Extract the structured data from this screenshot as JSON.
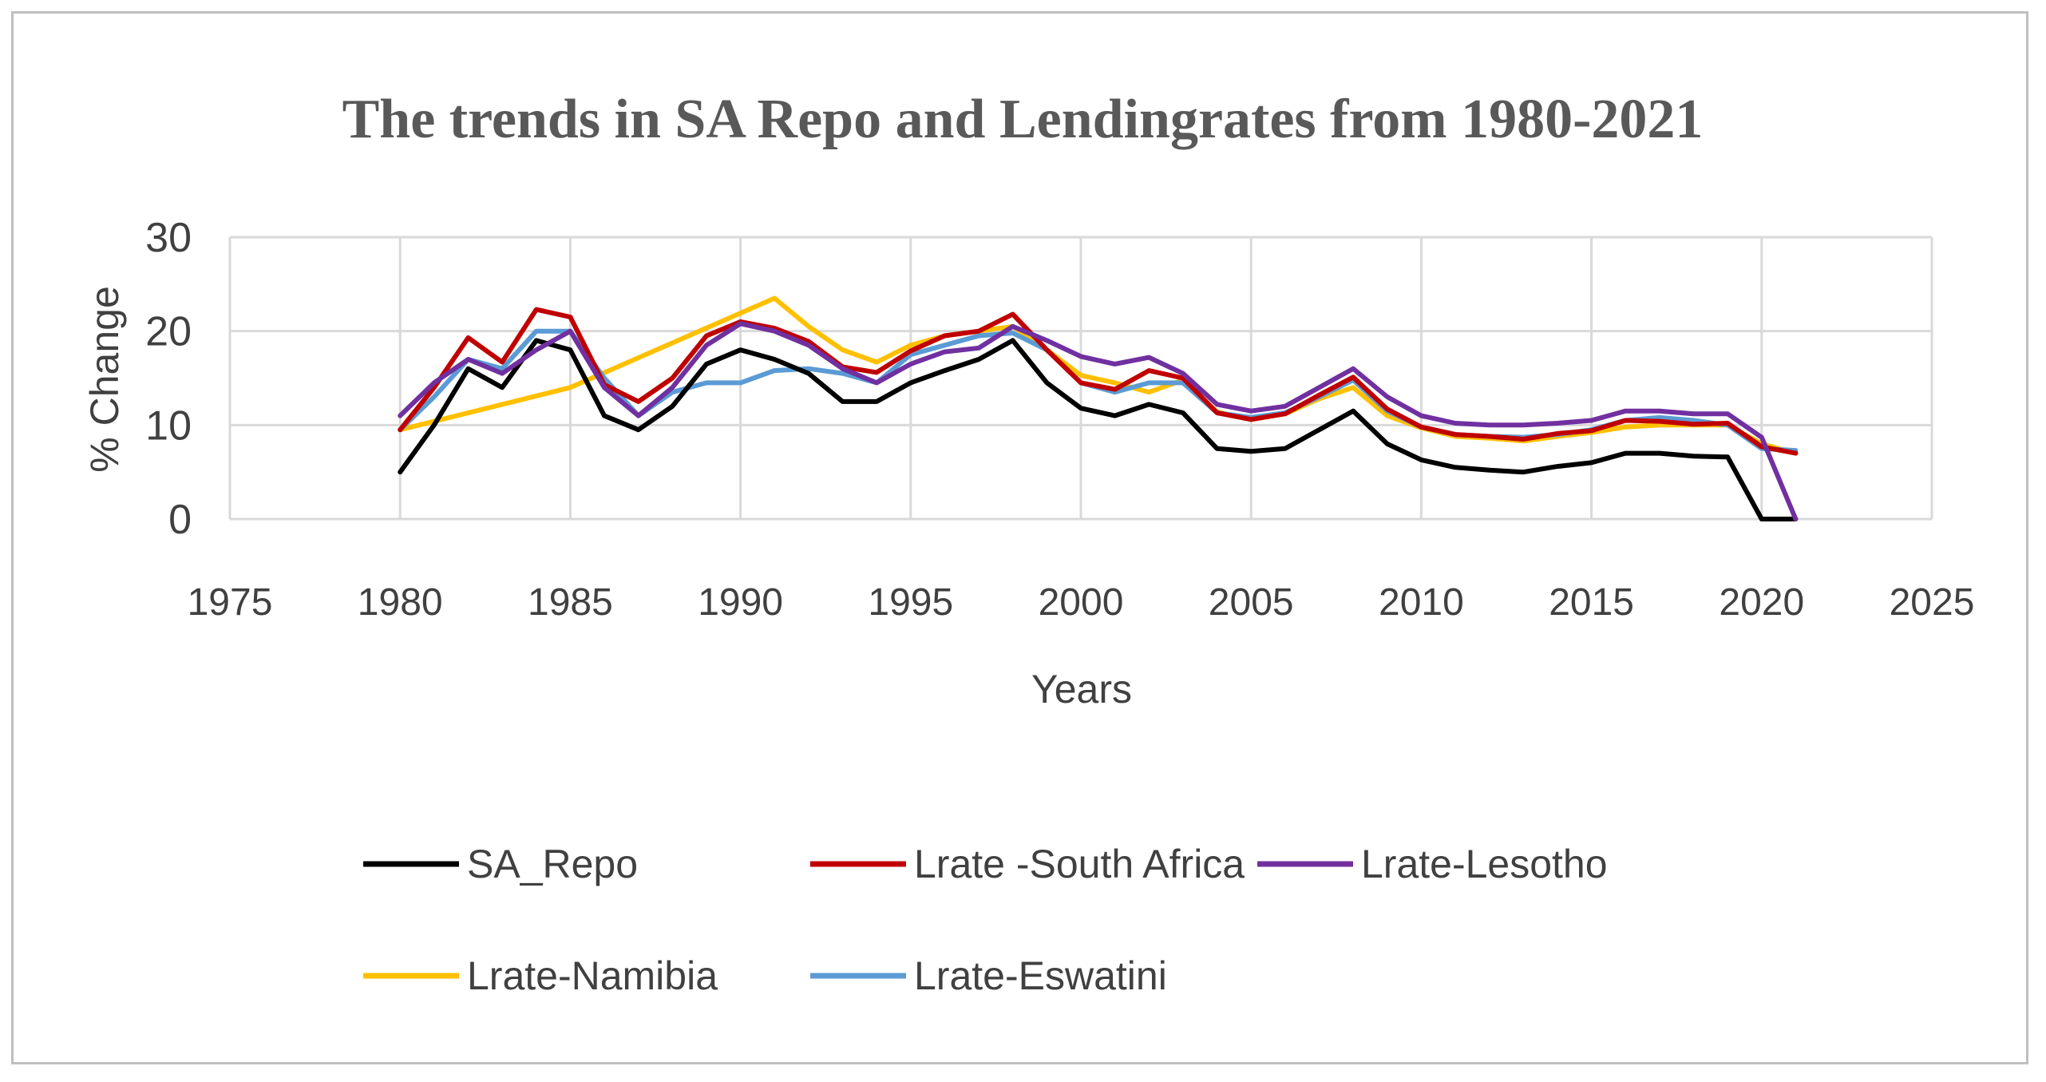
{
  "chart_data": {
    "type": "line",
    "title": "The trends in SA Repo and Lendingrates from 1980-2021",
    "xlabel": "Years",
    "ylabel": "% Change",
    "xlim": [
      1975,
      2025
    ],
    "ylim": [
      0,
      30
    ],
    "xticks": [
      "1975",
      "1980",
      "1985",
      "1990",
      "1995",
      "2000",
      "2005",
      "2010",
      "2015",
      "2020",
      "2025"
    ],
    "yticks": [
      "0",
      "10",
      "20",
      "30"
    ],
    "grid": true,
    "legend_position": "bottom",
    "x": [
      1980,
      1981,
      1982,
      1983,
      1984,
      1985,
      1986,
      1987,
      1988,
      1989,
      1990,
      1991,
      1992,
      1993,
      1994,
      1995,
      1996,
      1997,
      1998,
      1999,
      2000,
      2001,
      2002,
      2003,
      2004,
      2005,
      2006,
      2007,
      2008,
      2009,
      2010,
      2011,
      2012,
      2013,
      2014,
      2015,
      2016,
      2017,
      2018,
      2019,
      2020,
      2021
    ],
    "series": [
      {
        "name": "Lrate-Namibia",
        "color": "#ffc000",
        "points": [
          [
            1980,
            9.5
          ],
          [
            1985,
            14.0
          ],
          [
            1991,
            23.5
          ],
          [
            1992,
            20.5
          ],
          [
            1993,
            18.0
          ],
          [
            1994,
            16.7
          ],
          [
            1995,
            18.5
          ],
          [
            1996,
            19.5
          ],
          [
            1997,
            20.0
          ],
          [
            1998,
            20.5
          ],
          [
            1999,
            18.0
          ],
          [
            2000,
            15.3
          ],
          [
            2001,
            14.5
          ],
          [
            2002,
            13.5
          ],
          [
            2003,
            14.8
          ],
          [
            2004,
            11.4
          ],
          [
            2005,
            10.6
          ],
          [
            2006,
            11.2
          ],
          [
            2007,
            12.8
          ],
          [
            2008,
            14.0
          ],
          [
            2009,
            11.0
          ],
          [
            2010,
            9.7
          ],
          [
            2011,
            8.8
          ],
          [
            2012,
            8.6
          ],
          [
            2013,
            8.3
          ],
          [
            2014,
            8.8
          ],
          [
            2015,
            9.2
          ],
          [
            2016,
            9.8
          ],
          [
            2017,
            10.0
          ],
          [
            2018,
            10.0
          ],
          [
            2019,
            10.0
          ],
          [
            2020,
            8.0
          ],
          [
            2021,
            7.0
          ]
        ]
      },
      {
        "name": "Lrate-Eswatini",
        "color": "#5b9bd5",
        "points": [
          [
            1980,
            9.5
          ],
          [
            1981,
            13.0
          ],
          [
            1982,
            17.0
          ],
          [
            1983,
            16.0
          ],
          [
            1984,
            20.0
          ],
          [
            1985,
            20.0
          ],
          [
            1986,
            15.0
          ],
          [
            1987,
            11.0
          ],
          [
            1988,
            13.5
          ],
          [
            1989,
            14.5
          ],
          [
            1990,
            14.5
          ],
          [
            1991,
            15.8
          ],
          [
            1992,
            16.0
          ],
          [
            1993,
            15.5
          ],
          [
            1994,
            14.5
          ],
          [
            1995,
            17.5
          ],
          [
            1996,
            18.5
          ],
          [
            1997,
            19.5
          ],
          [
            1998,
            19.8
          ],
          [
            1999,
            18.0
          ],
          [
            2000,
            14.5
          ],
          [
            2001,
            13.5
          ],
          [
            2002,
            14.5
          ],
          [
            2003,
            14.5
          ],
          [
            2004,
            11.3
          ],
          [
            2005,
            10.8
          ],
          [
            2006,
            11.3
          ],
          [
            2007,
            13.0
          ],
          [
            2008,
            14.8
          ],
          [
            2009,
            11.5
          ],
          [
            2010,
            9.8
          ],
          [
            2011,
            9.0
          ],
          [
            2012,
            8.8
          ],
          [
            2013,
            8.7
          ],
          [
            2014,
            9.0
          ],
          [
            2015,
            9.5
          ],
          [
            2016,
            10.5
          ],
          [
            2017,
            10.8
          ],
          [
            2018,
            10.5
          ],
          [
            2019,
            10.0
          ],
          [
            2020,
            7.5
          ],
          [
            2021,
            7.3
          ]
        ]
      },
      {
        "name": "Lrate -South Africa",
        "color": "#c00000",
        "points": [
          [
            1980,
            9.5
          ],
          [
            1981,
            14.0
          ],
          [
            1982,
            19.3
          ],
          [
            1983,
            16.7
          ],
          [
            1984,
            22.3
          ],
          [
            1985,
            21.5
          ],
          [
            1986,
            14.3
          ],
          [
            1987,
            12.5
          ],
          [
            1988,
            15.0
          ],
          [
            1989,
            19.5
          ],
          [
            1990,
            21.0
          ],
          [
            1991,
            20.3
          ],
          [
            1992,
            18.9
          ],
          [
            1993,
            16.2
          ],
          [
            1994,
            15.6
          ],
          [
            1995,
            17.9
          ],
          [
            1996,
            19.5
          ],
          [
            1997,
            20.0
          ],
          [
            1998,
            21.8
          ],
          [
            1999,
            18.0
          ],
          [
            2000,
            14.5
          ],
          [
            2001,
            13.8
          ],
          [
            2002,
            15.8
          ],
          [
            2003,
            15.0
          ],
          [
            2004,
            11.3
          ],
          [
            2005,
            10.6
          ],
          [
            2006,
            11.2
          ],
          [
            2007,
            13.2
          ],
          [
            2008,
            15.1
          ],
          [
            2009,
            11.7
          ],
          [
            2010,
            9.8
          ],
          [
            2011,
            9.0
          ],
          [
            2012,
            8.8
          ],
          [
            2013,
            8.5
          ],
          [
            2014,
            9.1
          ],
          [
            2015,
            9.4
          ],
          [
            2016,
            10.5
          ],
          [
            2017,
            10.4
          ],
          [
            2018,
            10.1
          ],
          [
            2019,
            10.2
          ],
          [
            2020,
            7.7
          ],
          [
            2021,
            7.0
          ]
        ]
      },
      {
        "name": "SA_Repo",
        "color": "#000000",
        "points": [
          [
            1980,
            5.0
          ],
          [
            1981,
            10.0
          ],
          [
            1982,
            16.0
          ],
          [
            1983,
            14.0
          ],
          [
            1984,
            19.0
          ],
          [
            1985,
            18.0
          ],
          [
            1986,
            11.0
          ],
          [
            1987,
            9.5
          ],
          [
            1988,
            12.0
          ],
          [
            1989,
            16.5
          ],
          [
            1990,
            18.0
          ],
          [
            1991,
            17.0
          ],
          [
            1992,
            15.5
          ],
          [
            1993,
            12.5
          ],
          [
            1994,
            12.5
          ],
          [
            1995,
            14.5
          ],
          [
            1996,
            15.8
          ],
          [
            1997,
            17.0
          ],
          [
            1998,
            19.0
          ],
          [
            1999,
            14.5
          ],
          [
            2000,
            11.8
          ],
          [
            2001,
            11.0
          ],
          [
            2002,
            12.2
          ],
          [
            2003,
            11.3
          ],
          [
            2004,
            7.5
          ],
          [
            2005,
            7.2
          ],
          [
            2006,
            7.5
          ],
          [
            2007,
            9.5
          ],
          [
            2008,
            11.5
          ],
          [
            2009,
            8.0
          ],
          [
            2010,
            6.3
          ],
          [
            2011,
            5.5
          ],
          [
            2012,
            5.2
          ],
          [
            2013,
            5.0
          ],
          [
            2014,
            5.6
          ],
          [
            2015,
            6.0
          ],
          [
            2016,
            7.0
          ],
          [
            2017,
            7.0
          ],
          [
            2018,
            6.7
          ],
          [
            2019,
            6.6
          ],
          [
            2020,
            0.0
          ],
          [
            2021,
            0.0
          ]
        ]
      },
      {
        "name": "Lrate-Lesotho",
        "color": "#7030a0",
        "points": [
          [
            1980,
            11.0
          ],
          [
            1981,
            14.5
          ],
          [
            1982,
            17.0
          ],
          [
            1983,
            15.5
          ],
          [
            1984,
            18.0
          ],
          [
            1985,
            20.0
          ],
          [
            1986,
            14.0
          ],
          [
            1987,
            11.0
          ],
          [
            1988,
            14.0
          ],
          [
            1989,
            18.5
          ],
          [
            1990,
            20.8
          ],
          [
            1991,
            20.0
          ],
          [
            1992,
            18.5
          ],
          [
            1993,
            16.0
          ],
          [
            1994,
            14.5
          ],
          [
            1995,
            16.5
          ],
          [
            1996,
            17.8
          ],
          [
            1997,
            18.2
          ],
          [
            1998,
            20.5
          ],
          [
            1999,
            19.0
          ],
          [
            2000,
            17.3
          ],
          [
            2001,
            16.5
          ],
          [
            2002,
            17.2
          ],
          [
            2003,
            15.5
          ],
          [
            2004,
            12.2
          ],
          [
            2005,
            11.5
          ],
          [
            2006,
            12.0
          ],
          [
            2007,
            14.0
          ],
          [
            2008,
            16.0
          ],
          [
            2009,
            13.0
          ],
          [
            2010,
            11.0
          ],
          [
            2011,
            10.2
          ],
          [
            2012,
            10.0
          ],
          [
            2013,
            10.0
          ],
          [
            2014,
            10.2
          ],
          [
            2015,
            10.5
          ],
          [
            2016,
            11.5
          ],
          [
            2017,
            11.5
          ],
          [
            2018,
            11.2
          ],
          [
            2019,
            11.2
          ],
          [
            2020,
            8.7
          ],
          [
            2021,
            0.0
          ]
        ]
      }
    ]
  },
  "legend": {
    "row1": [
      "SA_Repo",
      "Lrate -South Africa",
      "Lrate-Lesotho"
    ],
    "row2": [
      "Lrate-Namibia",
      "Lrate-Eswatini"
    ]
  }
}
